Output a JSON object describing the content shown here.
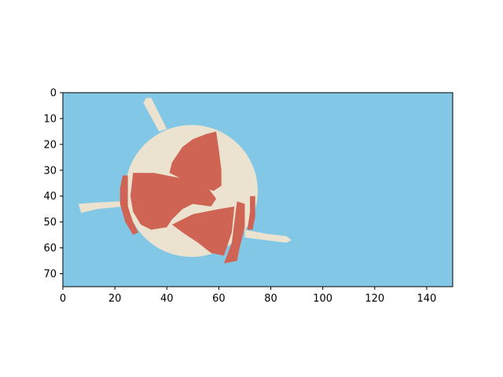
{
  "chart_data": {
    "type": "heatmap",
    "title": "",
    "xlabel": "",
    "ylabel": "",
    "xlim": [
      0,
      150
    ],
    "ylim": [
      75,
      0
    ],
    "y_axis_inverted": true,
    "grid": false,
    "x_ticks": [
      0,
      20,
      40,
      60,
      80,
      100,
      120,
      140
    ],
    "y_ticks": [
      0,
      10,
      20,
      30,
      40,
      50,
      60,
      70
    ],
    "x_tick_labels": [
      "0",
      "20",
      "40",
      "60",
      "80",
      "100",
      "120",
      "140"
    ],
    "y_tick_labels": [
      "0",
      "10",
      "20",
      "30",
      "40",
      "50",
      "60",
      "70"
    ],
    "colors": {
      "background": "#82c8e6",
      "body": "#ece2d0",
      "marking": "#d06454",
      "frame": "#000000"
    },
    "regions": [
      {
        "name": "background",
        "color": "background",
        "shape": "rect",
        "points": [
          [
            0,
            0
          ],
          [
            150,
            0
          ],
          [
            150,
            75
          ],
          [
            0,
            75
          ]
        ]
      },
      {
        "name": "spoke-top",
        "color": "body",
        "shape": "polygon",
        "points": [
          [
            32,
            2
          ],
          [
            34,
            2
          ],
          [
            40,
            14
          ],
          [
            37,
            15
          ],
          [
            31,
            4
          ]
        ]
      },
      {
        "name": "spoke-left",
        "color": "body",
        "shape": "polygon",
        "points": [
          [
            6,
            43
          ],
          [
            12,
            42.5
          ],
          [
            22,
            42
          ],
          [
            23,
            44
          ],
          [
            13,
            45
          ],
          [
            7,
            46.5
          ]
        ]
      },
      {
        "name": "spoke-right",
        "color": "body",
        "shape": "polygon",
        "points": [
          [
            70,
            53
          ],
          [
            78,
            54.5
          ],
          [
            86,
            55.5
          ],
          [
            88,
            57
          ],
          [
            86,
            58
          ],
          [
            78,
            57
          ],
          [
            70,
            56
          ]
        ]
      },
      {
        "name": "disc",
        "color": "body",
        "shape": "circle",
        "center": [
          49.5,
          38
        ],
        "radius": 25.5
      },
      {
        "name": "marking-upper",
        "color": "marking",
        "shape": "polygon",
        "points": [
          [
            46,
            21
          ],
          [
            50,
            18
          ],
          [
            55,
            16
          ],
          [
            59,
            15
          ],
          [
            60,
            22
          ],
          [
            61,
            30
          ],
          [
            61,
            36
          ],
          [
            58,
            38
          ],
          [
            52,
            36
          ],
          [
            45,
            33
          ],
          [
            41,
            31
          ],
          [
            42,
            27
          ]
        ]
      },
      {
        "name": "marking-main",
        "color": "marking",
        "shape": "polygon",
        "points": [
          [
            27,
            31
          ],
          [
            35,
            31
          ],
          [
            45,
            33
          ],
          [
            56,
            37
          ],
          [
            59,
            41
          ],
          [
            57,
            44
          ],
          [
            50,
            43
          ],
          [
            46,
            45
          ],
          [
            42,
            49
          ],
          [
            40,
            52
          ],
          [
            34,
            53
          ],
          [
            30,
            51
          ],
          [
            27,
            46
          ],
          [
            26,
            40
          ]
        ]
      },
      {
        "name": "marking-left-edge",
        "color": "marking",
        "shape": "polygon",
        "points": [
          [
            23,
            32
          ],
          [
            25,
            32
          ],
          [
            25,
            44
          ],
          [
            27,
            50
          ],
          [
            29,
            54
          ],
          [
            27,
            55
          ],
          [
            24,
            50
          ],
          [
            22,
            43
          ],
          [
            22,
            37
          ]
        ]
      },
      {
        "name": "marking-lower",
        "color": "marking",
        "shape": "polygon",
        "points": [
          [
            42,
            51
          ],
          [
            50,
            47
          ],
          [
            60,
            45
          ],
          [
            66,
            44
          ],
          [
            65,
            54
          ],
          [
            63,
            60
          ],
          [
            62,
            63
          ],
          [
            57,
            62
          ],
          [
            52,
            58
          ],
          [
            46,
            54
          ]
        ]
      },
      {
        "name": "marking-right",
        "color": "marking",
        "shape": "polygon",
        "points": [
          [
            67,
            42
          ],
          [
            70,
            43
          ],
          [
            70,
            52
          ],
          [
            68,
            60
          ],
          [
            67,
            65
          ],
          [
            62,
            66
          ],
          [
            65,
            58
          ],
          [
            66,
            50
          ]
        ]
      },
      {
        "name": "marking-right-edge",
        "color": "marking",
        "shape": "polygon",
        "points": [
          [
            72,
            40
          ],
          [
            74,
            40
          ],
          [
            74,
            48
          ],
          [
            73,
            53
          ],
          [
            71,
            53
          ],
          [
            72,
            46
          ]
        ]
      }
    ]
  }
}
